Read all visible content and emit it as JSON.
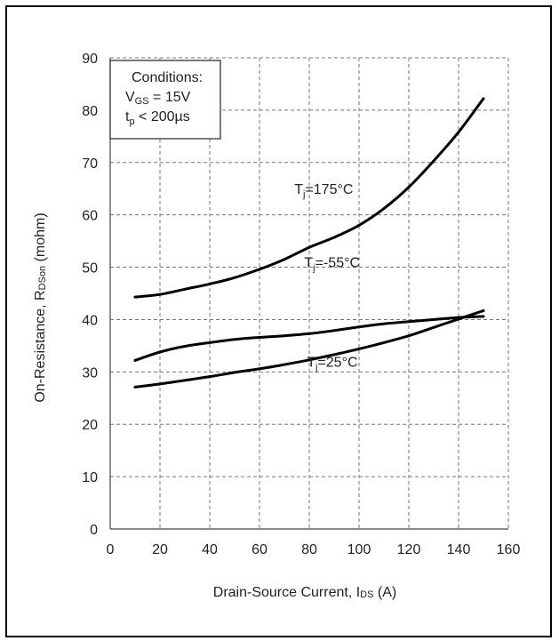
{
  "chart_data": {
    "type": "line",
    "title": "",
    "xlabel": "Drain-Source Current, I",
    "xlabel_sub": "DS",
    "xlabel_unit": "(A)",
    "ylabel": "On-Resistance, R",
    "ylabel_sub": "DSon",
    "ylabel_unit": "(mohm)",
    "xlim": [
      0,
      160
    ],
    "ylim": [
      0,
      90
    ],
    "xticks": [
      0,
      20,
      40,
      60,
      80,
      100,
      120,
      140,
      160
    ],
    "yticks": [
      0,
      10,
      20,
      30,
      40,
      50,
      60,
      70,
      80,
      90
    ],
    "grid": true,
    "conditions": {
      "title": "Conditions:",
      "line1_main": "V",
      "line1_sub": "GS",
      "line1_rest": " = 15V",
      "line2_main": "t",
      "line2_sub": "p",
      "line2_rest": " < 200µs"
    },
    "series": [
      {
        "name": "Tj=175°C",
        "label_main": "T",
        "label_sub": "j",
        "label_rest": "=175°C",
        "label_at": [
          74,
          64
        ],
        "x": [
          10,
          20,
          30,
          40,
          50,
          60,
          70,
          80,
          90,
          100,
          110,
          120,
          130,
          140,
          150
        ],
        "y": [
          44.3,
          44.8,
          45.8,
          46.8,
          48.0,
          49.6,
          51.5,
          53.8,
          55.7,
          58.0,
          61.2,
          65.3,
          70.3,
          75.8,
          82.2
        ]
      },
      {
        "name": "Tj=-55°C",
        "label_main": "T",
        "label_sub": "j",
        "label_rest": "=-55°C",
        "label_at": [
          78,
          50
        ],
        "x": [
          10,
          20,
          30,
          40,
          50,
          60,
          70,
          80,
          90,
          100,
          110,
          120,
          130,
          140,
          150
        ],
        "y": [
          32.2,
          33.8,
          34.9,
          35.6,
          36.2,
          36.6,
          36.9,
          37.3,
          37.9,
          38.6,
          39.2,
          39.6,
          40.0,
          40.4,
          40.6
        ]
      },
      {
        "name": "Tj=25°C",
        "label_main": "T",
        "label_sub": "j",
        "label_rest": "=25°C",
        "label_at": [
          79,
          31
        ],
        "x": [
          10,
          20,
          30,
          40,
          50,
          60,
          70,
          80,
          90,
          100,
          110,
          120,
          130,
          140,
          150
        ],
        "y": [
          27.1,
          27.7,
          28.4,
          29.1,
          29.9,
          30.6,
          31.4,
          32.3,
          33.3,
          34.4,
          35.6,
          36.9,
          38.5,
          40.1,
          41.7
        ]
      }
    ]
  }
}
